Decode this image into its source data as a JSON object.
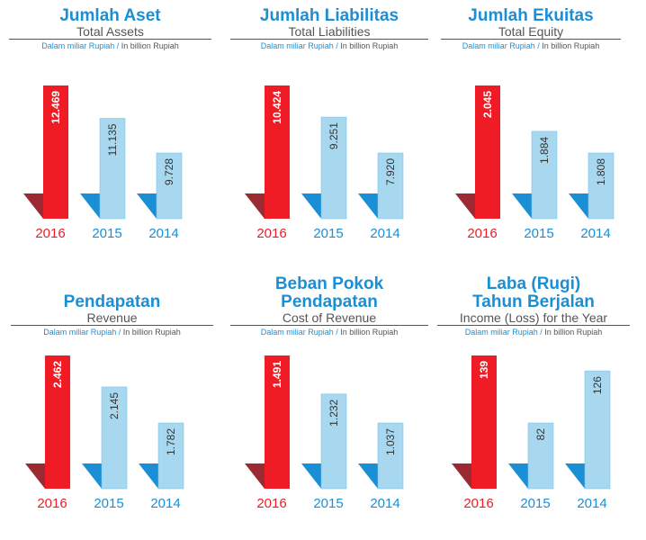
{
  "unit_label": {
    "id": "Dalam miliar Rupiah /",
    "en": "In billion Rupiah"
  },
  "colors": {
    "highlight": "#ef1c25",
    "highlight_shadow": "#9b2a33",
    "bar": "#a8d8f0",
    "bar_edge": "#7cc3e6",
    "shadow": "#1a8fd6",
    "title": "#1a8fd6"
  },
  "chart_data": [
    {
      "type": "bar",
      "title_lines": [
        "Jumlah Aset"
      ],
      "subtitle": "Total Assets",
      "categories": [
        "2016",
        "2015",
        "2014"
      ],
      "values": [
        12469,
        11135,
        9728
      ],
      "labels": [
        "12.469",
        "11.135",
        "9.728"
      ]
    },
    {
      "type": "bar",
      "title_lines": [
        "Jumlah Liabilitas"
      ],
      "subtitle": "Total Liabilities",
      "categories": [
        "2016",
        "2015",
        "2014"
      ],
      "values": [
        10424,
        9251,
        7920
      ],
      "labels": [
        "10.424",
        "9.251",
        "7.920"
      ]
    },
    {
      "type": "bar",
      "title_lines": [
        "Jumlah Ekuitas"
      ],
      "subtitle": "Total Equity",
      "categories": [
        "2016",
        "2015",
        "2014"
      ],
      "values": [
        2045,
        1884,
        1808
      ],
      "labels": [
        "2.045",
        "1.884",
        "1.808"
      ]
    },
    {
      "type": "bar",
      "title_lines": [
        "Pendapatan"
      ],
      "subtitle": "Revenue",
      "categories": [
        "2016",
        "2015",
        "2014"
      ],
      "values": [
        2462,
        2145,
        1782
      ],
      "labels": [
        "2.462",
        "2.145",
        "1.782"
      ]
    },
    {
      "type": "bar",
      "title_lines": [
        "Beban Pokok",
        "Pendapatan"
      ],
      "subtitle": "Cost of Revenue",
      "categories": [
        "2016",
        "2015",
        "2014"
      ],
      "values": [
        1491,
        1232,
        1037
      ],
      "labels": [
        "1.491",
        "1.232",
        "1.037"
      ]
    },
    {
      "type": "bar",
      "title_lines": [
        "Laba (Rugi)",
        "Tahun Berjalan"
      ],
      "subtitle": "Income (Loss) for the Year",
      "categories": [
        "2016",
        "2015",
        "2014"
      ],
      "values": [
        139,
        82,
        126
      ],
      "labels": [
        "139",
        "82",
        "126"
      ]
    }
  ]
}
